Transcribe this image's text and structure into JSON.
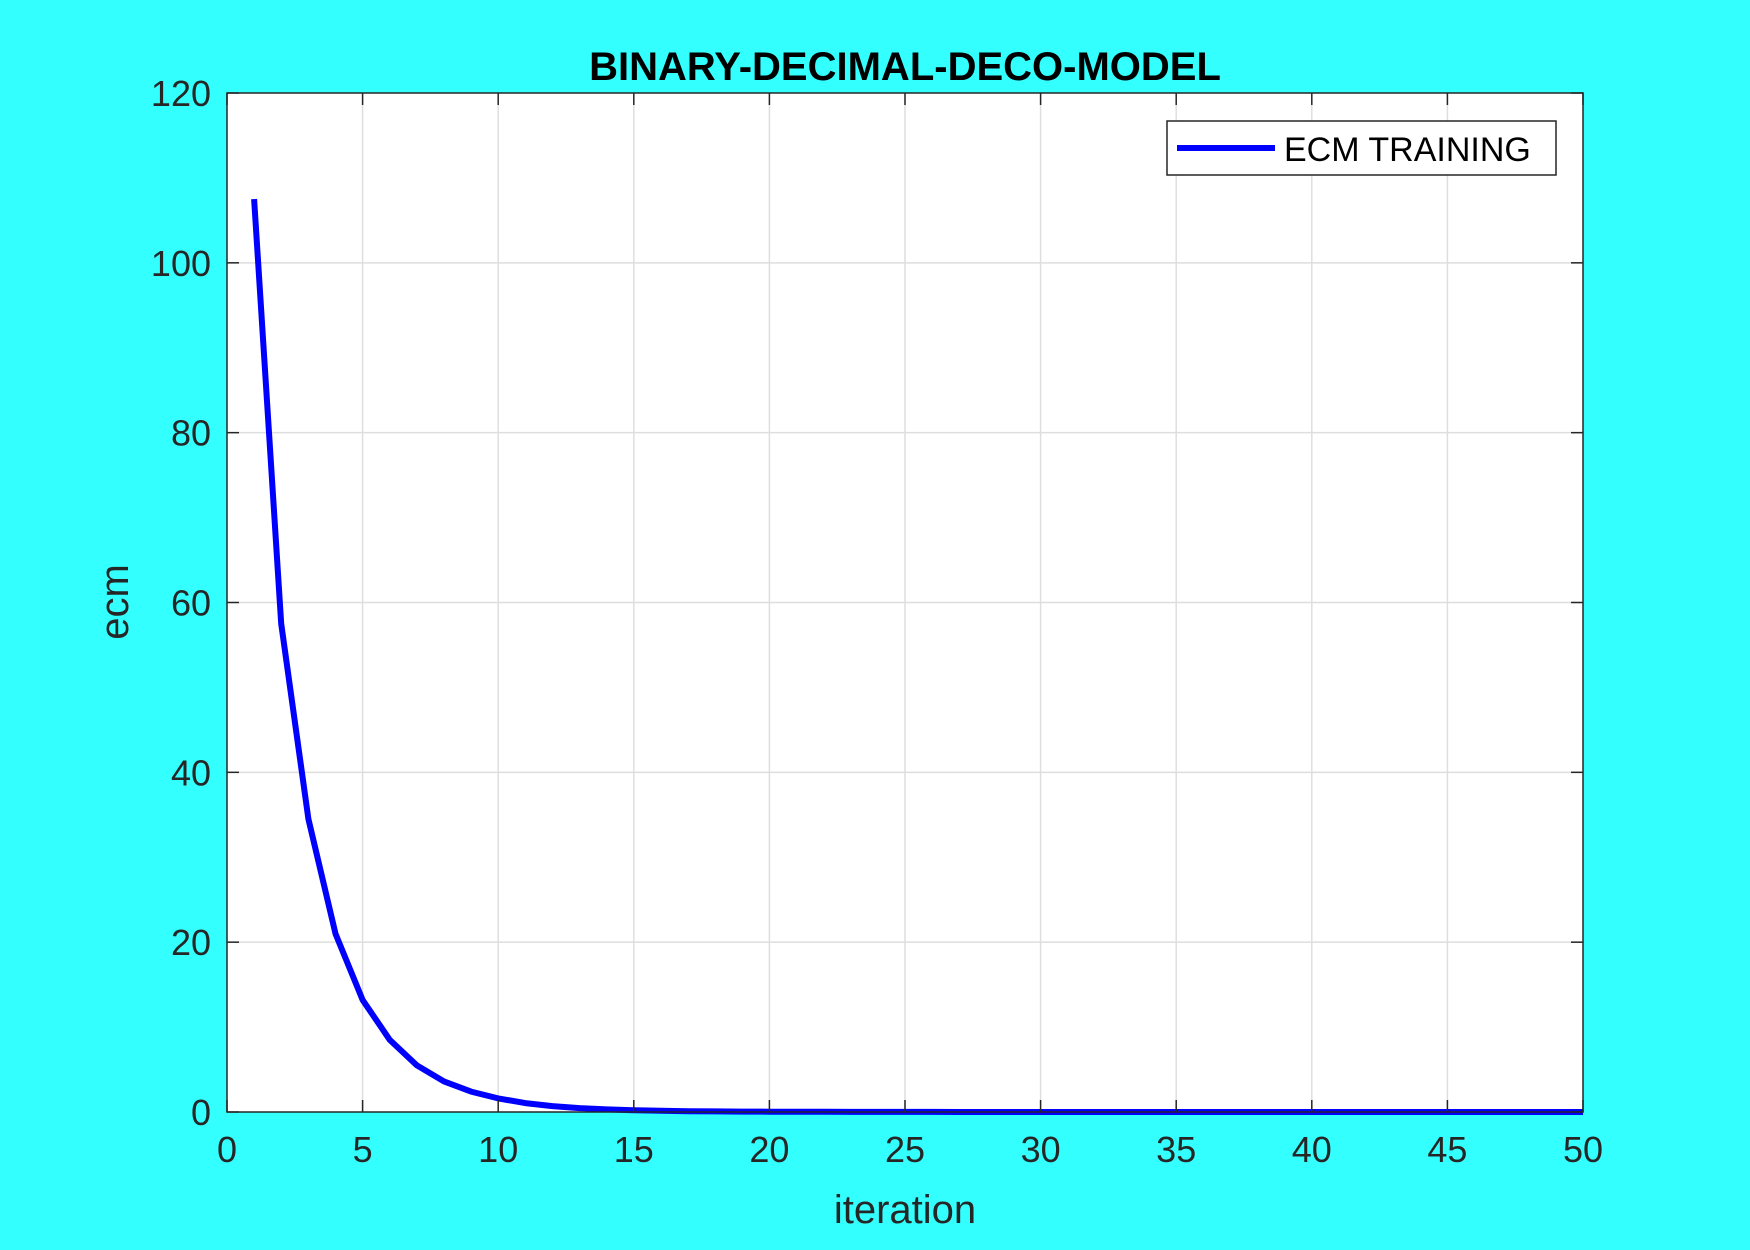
{
  "chart_data": {
    "type": "line",
    "title": "BINARY-DECIMAL-DECO-MODEL",
    "xlabel": "iteration",
    "ylabel": "ecm",
    "xlim": [
      0,
      50
    ],
    "ylim": [
      0,
      120
    ],
    "xticks": [
      0,
      5,
      10,
      15,
      20,
      25,
      30,
      35,
      40,
      45,
      50
    ],
    "yticks": [
      0,
      20,
      40,
      60,
      80,
      100,
      120
    ],
    "grid": true,
    "legend_position": "top-right",
    "series": [
      {
        "name": "ECM TRAINING",
        "color": "#0000ff",
        "x": [
          1,
          2,
          3,
          4,
          5,
          6,
          7,
          8,
          9,
          10,
          11,
          12,
          13,
          14,
          15,
          16,
          17,
          18,
          19,
          20,
          21,
          22,
          23,
          24,
          25,
          26,
          27,
          28,
          29,
          30,
          31,
          32,
          33,
          34,
          35,
          36,
          37,
          38,
          39,
          40,
          41,
          42,
          43,
          44,
          45,
          46,
          47,
          48,
          49,
          50
        ],
        "y": [
          107.5,
          57.5,
          34.5,
          21,
          13.2,
          8.5,
          5.5,
          3.6,
          2.4,
          1.6,
          1.05,
          0.7,
          0.46,
          0.31,
          0.21,
          0.14,
          0.1,
          0.07,
          0.05,
          0.035,
          0.025,
          0.018,
          0.013,
          0.01,
          0.008,
          0.006,
          0.005,
          0.004,
          0.003,
          0.003,
          0.002,
          0.002,
          0.002,
          0.001,
          0.001,
          0.001,
          0.001,
          0.001,
          0.001,
          0.001,
          0.001,
          0.001,
          0.001,
          0.001,
          0.001,
          0.001,
          0.001,
          0.001,
          0.001,
          0.001
        ]
      }
    ]
  }
}
